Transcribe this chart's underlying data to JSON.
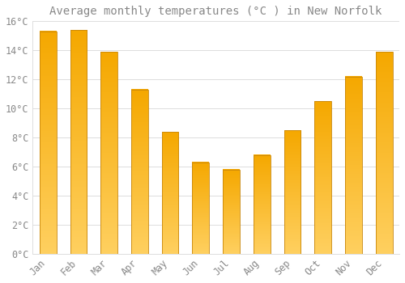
{
  "title": "Average monthly temperatures (°C ) in New Norfolk",
  "months": [
    "Jan",
    "Feb",
    "Mar",
    "Apr",
    "May",
    "Jun",
    "Jul",
    "Aug",
    "Sep",
    "Oct",
    "Nov",
    "Dec"
  ],
  "values": [
    15.3,
    15.4,
    13.9,
    11.3,
    8.4,
    6.3,
    5.8,
    6.8,
    8.5,
    10.5,
    12.2,
    13.9
  ],
  "bar_color_top": "#F5A800",
  "bar_color_bottom": "#FFD060",
  "bar_edge_color": "#C8860A",
  "background_color": "#FFFFFF",
  "grid_color": "#DDDDDD",
  "text_color": "#888888",
  "ylim": [
    0,
    16
  ],
  "yticks": [
    0,
    2,
    4,
    6,
    8,
    10,
    12,
    14,
    16
  ],
  "ytick_labels": [
    "0°C",
    "2°C",
    "4°C",
    "6°C",
    "8°C",
    "10°C",
    "12°C",
    "14°C",
    "16°C"
  ],
  "title_fontsize": 10,
  "tick_fontsize": 8.5,
  "bar_width": 0.55
}
